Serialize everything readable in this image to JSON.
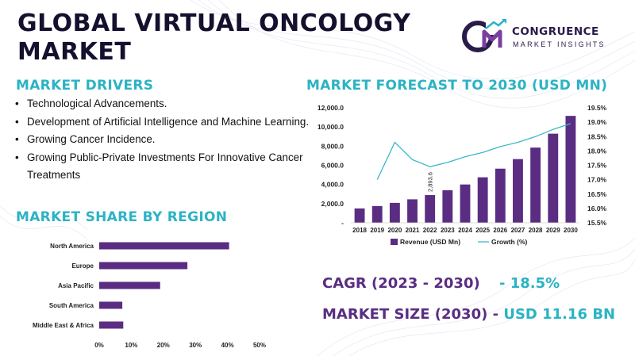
{
  "title": "GLOBAL VIRTUAL ONCOLOGY MARKET",
  "logo": {
    "name": "CONGRUENCE",
    "tagline": "MARKET INSIGHTS",
    "mark": "CM"
  },
  "drivers": {
    "heading": "MARKET DRIVERS",
    "items": [
      "Technological Advancements.",
      "Development of Artificial Intelligence and Machine Learning.",
      "Growing Cancer Incidence.",
      "Growing Public-Private Investments For Innovative Cancer Treatments"
    ]
  },
  "region": {
    "heading": "MARKET SHARE BY REGION"
  },
  "forecast": {
    "heading": "MARKET FORECAST TO 2030 (USD MN)"
  },
  "stats": {
    "cagr_label": "CAGR (2023 - 2030)",
    "cagr_value": "- 18.5%",
    "size_label": "MARKET SIZE (2030) -",
    "size_value": "USD 11.16 BN"
  },
  "colors": {
    "bar": "#5a2d82",
    "line": "#3ab8c8",
    "accent": "#2bb3c4",
    "title": "#14102e"
  },
  "chart_data": [
    {
      "type": "bar",
      "orientation": "horizontal",
      "categories": [
        "North America",
        "Europe",
        "Asia Pacific",
        "South America",
        "Middle East & Africa"
      ],
      "values": [
        40.5,
        27.5,
        19,
        7.2,
        7.5
      ],
      "xlim": [
        0,
        50
      ],
      "xticks": [
        "0%",
        "10%",
        "20%",
        "30%",
        "40%",
        "50%"
      ],
      "grid": false
    },
    {
      "type": "bar",
      "categories": [
        "2018",
        "2019",
        "2020",
        "2021",
        "2022",
        "2023",
        "2024",
        "2025",
        "2026",
        "2027",
        "2028",
        "2029",
        "2030"
      ],
      "series": [
        {
          "name": "Revenue (USD Mn)",
          "type": "bar",
          "axis": "left",
          "values": [
            1500,
            1750,
            2080,
            2450,
            2893.6,
            3400,
            4000,
            4750,
            5650,
            6650,
            7850,
            9300,
            11160
          ]
        },
        {
          "name": "Growth (%)",
          "type": "line",
          "axis": "right",
          "values": [
            null,
            17.0,
            18.3,
            17.7,
            17.45,
            17.6,
            17.8,
            17.95,
            18.15,
            18.3,
            18.5,
            18.75,
            18.95
          ]
        }
      ],
      "ylim_left": [
        0,
        12000
      ],
      "yticks_left": [
        "-",
        "2,000.0",
        "4,000.0",
        "6,000.0",
        "8,000.0",
        "10,000.0",
        "12,000.0"
      ],
      "ylim_right": [
        15.5,
        19.5
      ],
      "yticks_right": [
        "15.5%",
        "16.0%",
        "16.5%",
        "17.0%",
        "17.5%",
        "18.0%",
        "18.5%",
        "19.0%",
        "19.5%"
      ],
      "data_labels": [
        {
          "category": "2022",
          "text": "2,893.6"
        }
      ],
      "legend": "bottom",
      "grid": false
    }
  ]
}
